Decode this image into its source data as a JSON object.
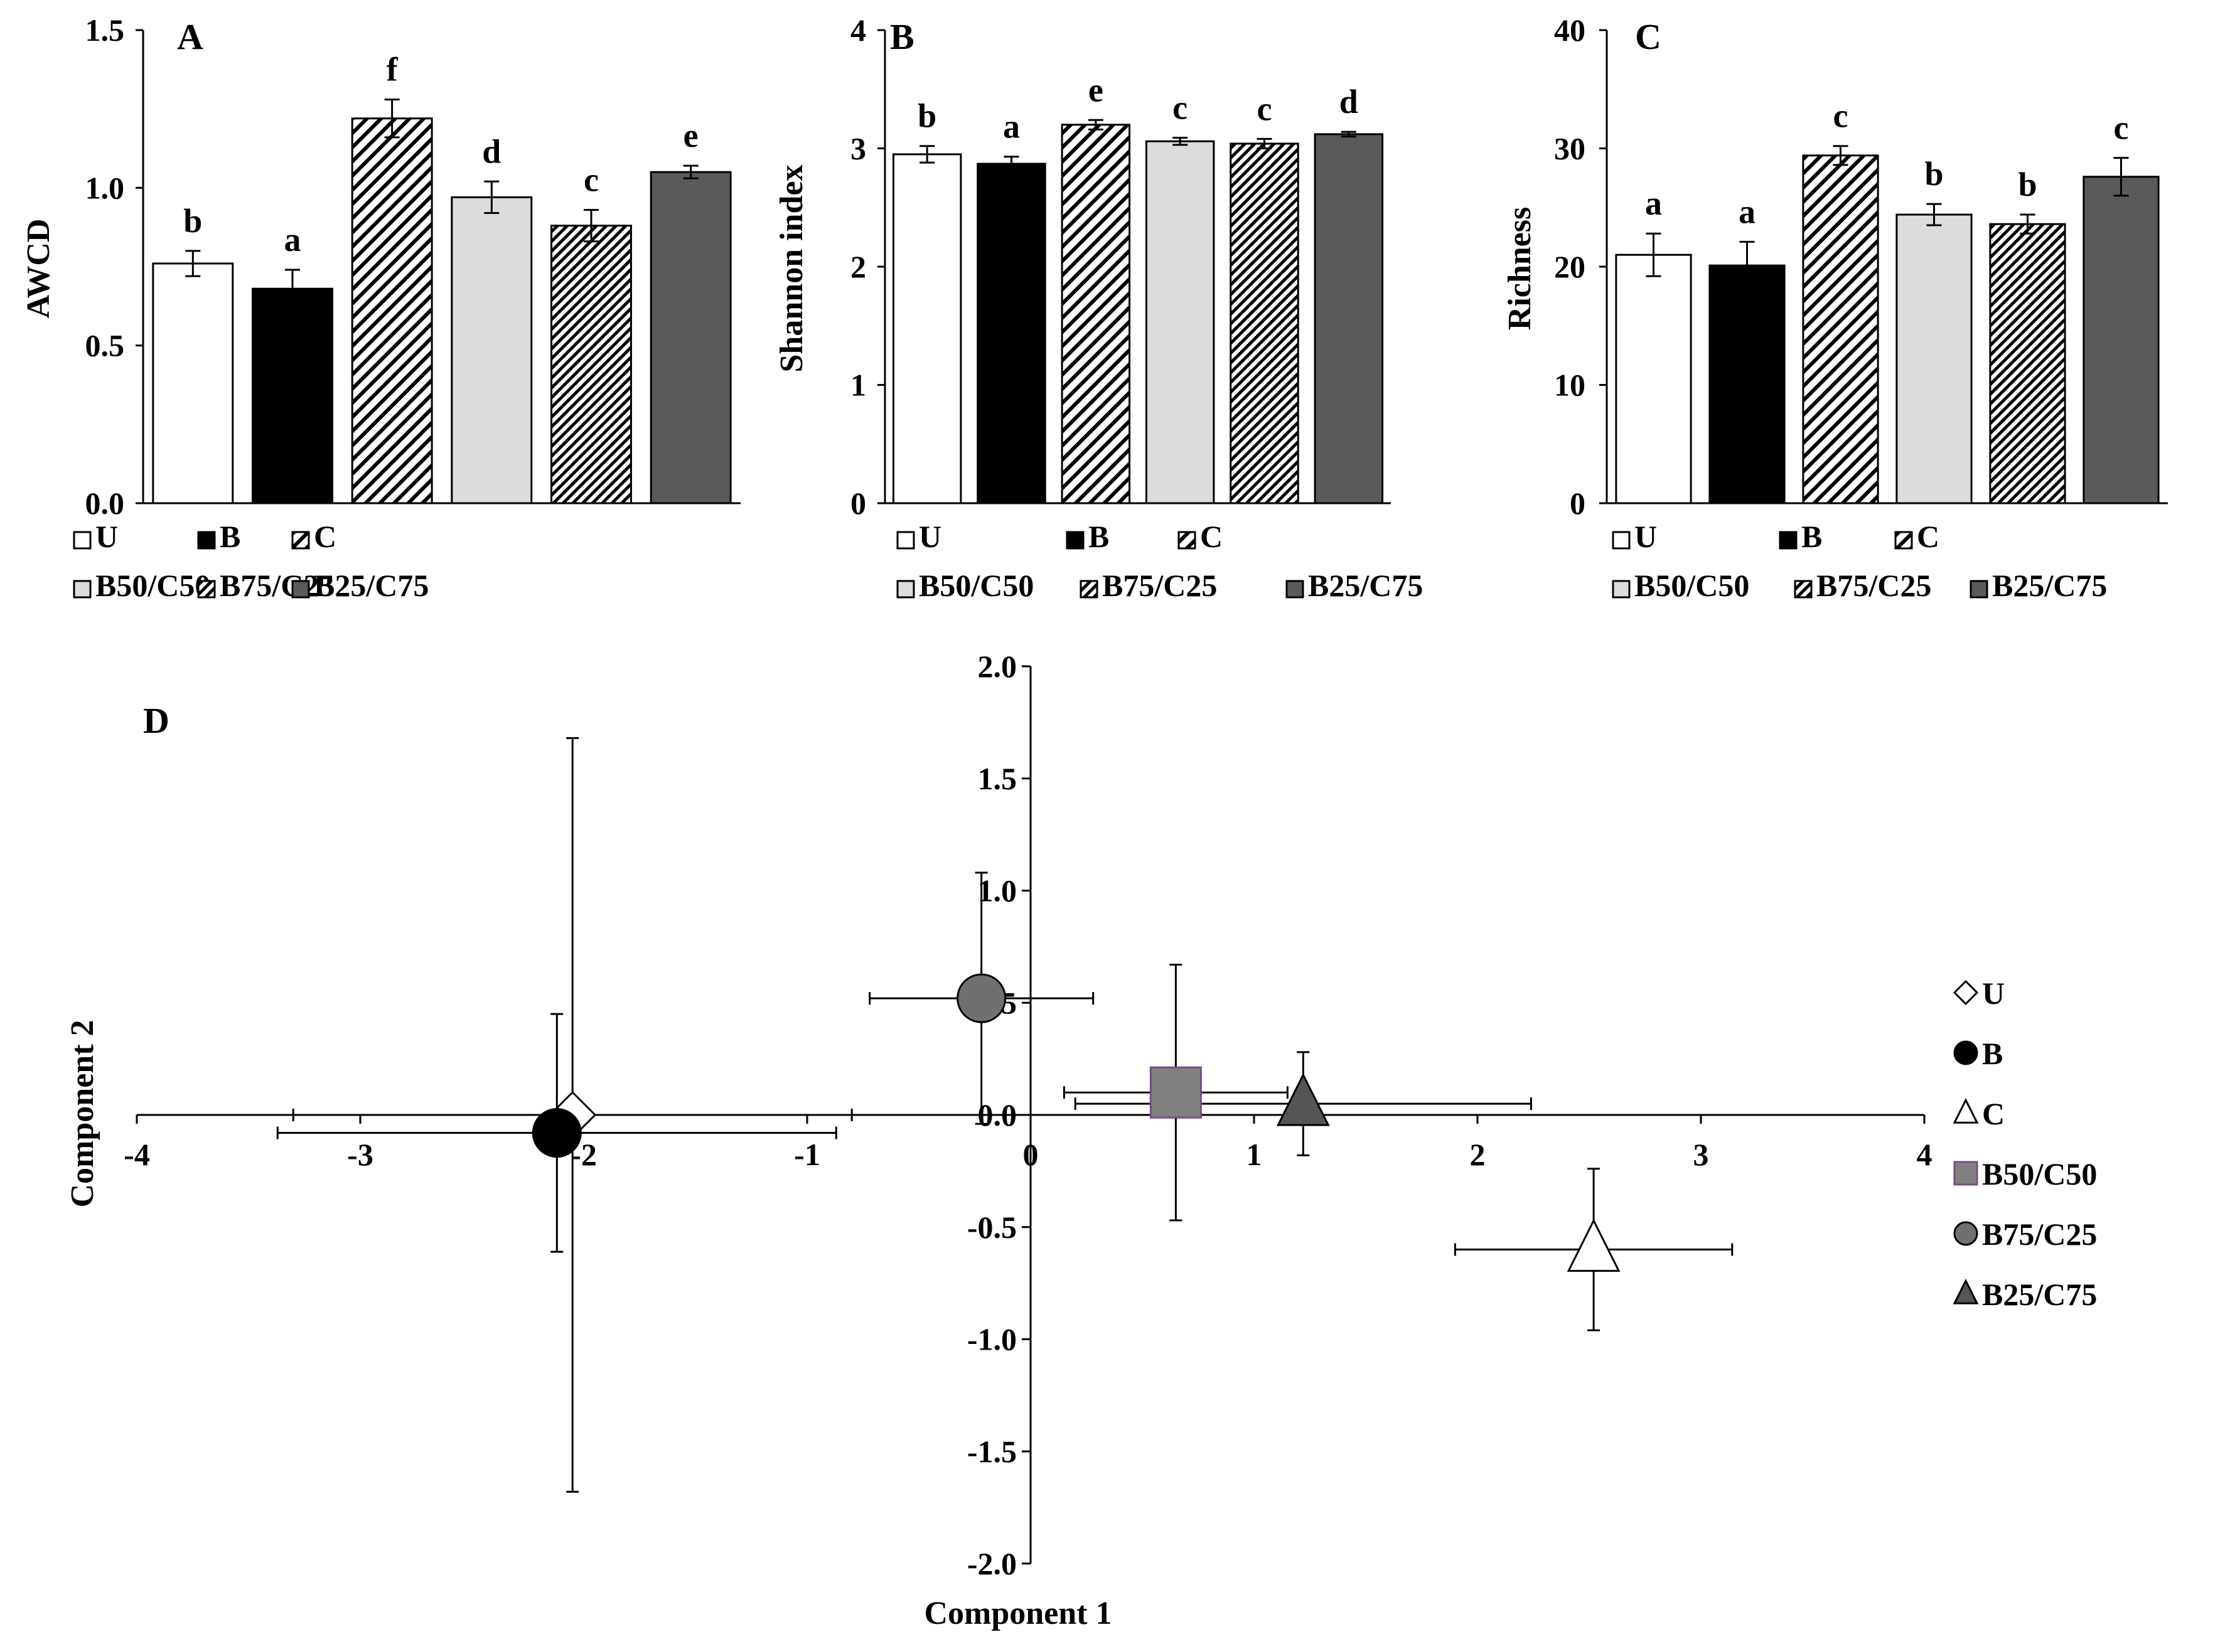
{
  "colors": {
    "U": "#ffffff",
    "B": "#000000",
    "C": "hatch-diagonal-wide",
    "B50/C50": "#dcdcdc",
    "B75/C25": "hatch-diagonal-dense",
    "B25/C75": "#5a5a5a",
    "B50/C50_scatter": "#808080",
    "B50/C50_scatter_edge": "#7a4b8a",
    "B75/C25_scatter": "#707070",
    "B25/C75_scatter": "#555555"
  },
  "legend": {
    "items": [
      "U",
      "B",
      "C",
      "B50/C50",
      "B75/C25",
      "B25/C75"
    ]
  },
  "chart_data": [
    {
      "id": "A",
      "type": "bar",
      "panel_label": "A",
      "ylabel": "AWCD",
      "ylim": [
        0,
        1.5
      ],
      "yticks": [
        "0.0",
        "0.5",
        "1.0",
        "1.5"
      ],
      "ytick_values": [
        0,
        0.5,
        1.0,
        1.5
      ],
      "categories": [
        "U",
        "B",
        "C",
        "B50/C50",
        "B75/C25",
        "B25/C75"
      ],
      "values": [
        0.76,
        0.68,
        1.22,
        0.97,
        0.88,
        1.05
      ],
      "errors": [
        0.04,
        0.06,
        0.06,
        0.05,
        0.05,
        0.02
      ],
      "letters": [
        "b",
        "a",
        "f",
        "d",
        "c",
        "e"
      ]
    },
    {
      "id": "B",
      "type": "bar",
      "panel_label": "B",
      "ylabel": "Shannon index",
      "ylim": [
        0,
        4
      ],
      "yticks": [
        "0",
        "1",
        "2",
        "3",
        "4"
      ],
      "ytick_values": [
        0,
        1,
        2,
        3,
        4
      ],
      "categories": [
        "U",
        "B",
        "C",
        "B50/C50",
        "B75/C25",
        "B25/C75"
      ],
      "values": [
        2.95,
        2.87,
        3.2,
        3.06,
        3.04,
        3.12
      ],
      "errors": [
        0.07,
        0.06,
        0.04,
        0.03,
        0.04,
        0.02
      ],
      "letters": [
        "b",
        "a",
        "e",
        "c",
        "c",
        "d"
      ]
    },
    {
      "id": "C",
      "type": "bar",
      "panel_label": "C",
      "ylabel": "Richness",
      "ylim": [
        0,
        40
      ],
      "yticks": [
        "0",
        "10",
        "20",
        "30",
        "40"
      ],
      "ytick_values": [
        0,
        10,
        20,
        30,
        40
      ],
      "categories": [
        "U",
        "B",
        "C",
        "B50/C50",
        "B75/C25",
        "B25/C75"
      ],
      "values": [
        21,
        20.1,
        29.4,
        24.4,
        23.6,
        27.6
      ],
      "errors": [
        1.8,
        2.0,
        0.8,
        0.9,
        0.8,
        1.6
      ],
      "letters": [
        "a",
        "a",
        "c",
        "b",
        "b",
        "c"
      ]
    },
    {
      "id": "D",
      "type": "scatter",
      "panel_label": "D",
      "xlabel": "Component 1",
      "ylabel": "Component 2",
      "xlim": [
        -4,
        4
      ],
      "ylim": [
        -2,
        2
      ],
      "xticks": [
        "-4",
        "-3",
        "-2",
        "-1",
        "0",
        "1",
        "2",
        "3",
        "4"
      ],
      "xtick_values": [
        -4,
        -3,
        -2,
        -1,
        0,
        1,
        2,
        3,
        4
      ],
      "yticks": [
        "-2.0",
        "-1.5",
        "-1.0",
        "-0.5",
        "0.0",
        "0.5",
        "1.0",
        "1.5",
        "2.0"
      ],
      "ytick_values": [
        -2,
        -1.5,
        -1,
        -0.5,
        0,
        0.5,
        1,
        1.5,
        2
      ],
      "legend_position": "right",
      "points": [
        {
          "name": "U",
          "marker": "diamond",
          "x": -2.05,
          "y": 0.0,
          "xerr": 1.25,
          "yerr": 1.68
        },
        {
          "name": "B",
          "marker": "circle",
          "x": -2.12,
          "y": -0.08,
          "xerr": 1.25,
          "yerr": 0.53
        },
        {
          "name": "C",
          "marker": "triangle",
          "x": 2.52,
          "y": -0.6,
          "xerr": 0.62,
          "yerr": 0.36
        },
        {
          "name": "B50/C50",
          "marker": "square",
          "x": 0.65,
          "y": 0.1,
          "xerr": 0.5,
          "yerr": 0.57
        },
        {
          "name": "B75/C25",
          "marker": "circle",
          "x": -0.22,
          "y": 0.52,
          "xerr": 0.5,
          "yerr": 0.56
        },
        {
          "name": "B25/C75",
          "marker": "triangle",
          "x": 1.22,
          "y": 0.05,
          "xerr": 1.02,
          "yerr": 0.23
        }
      ]
    }
  ]
}
